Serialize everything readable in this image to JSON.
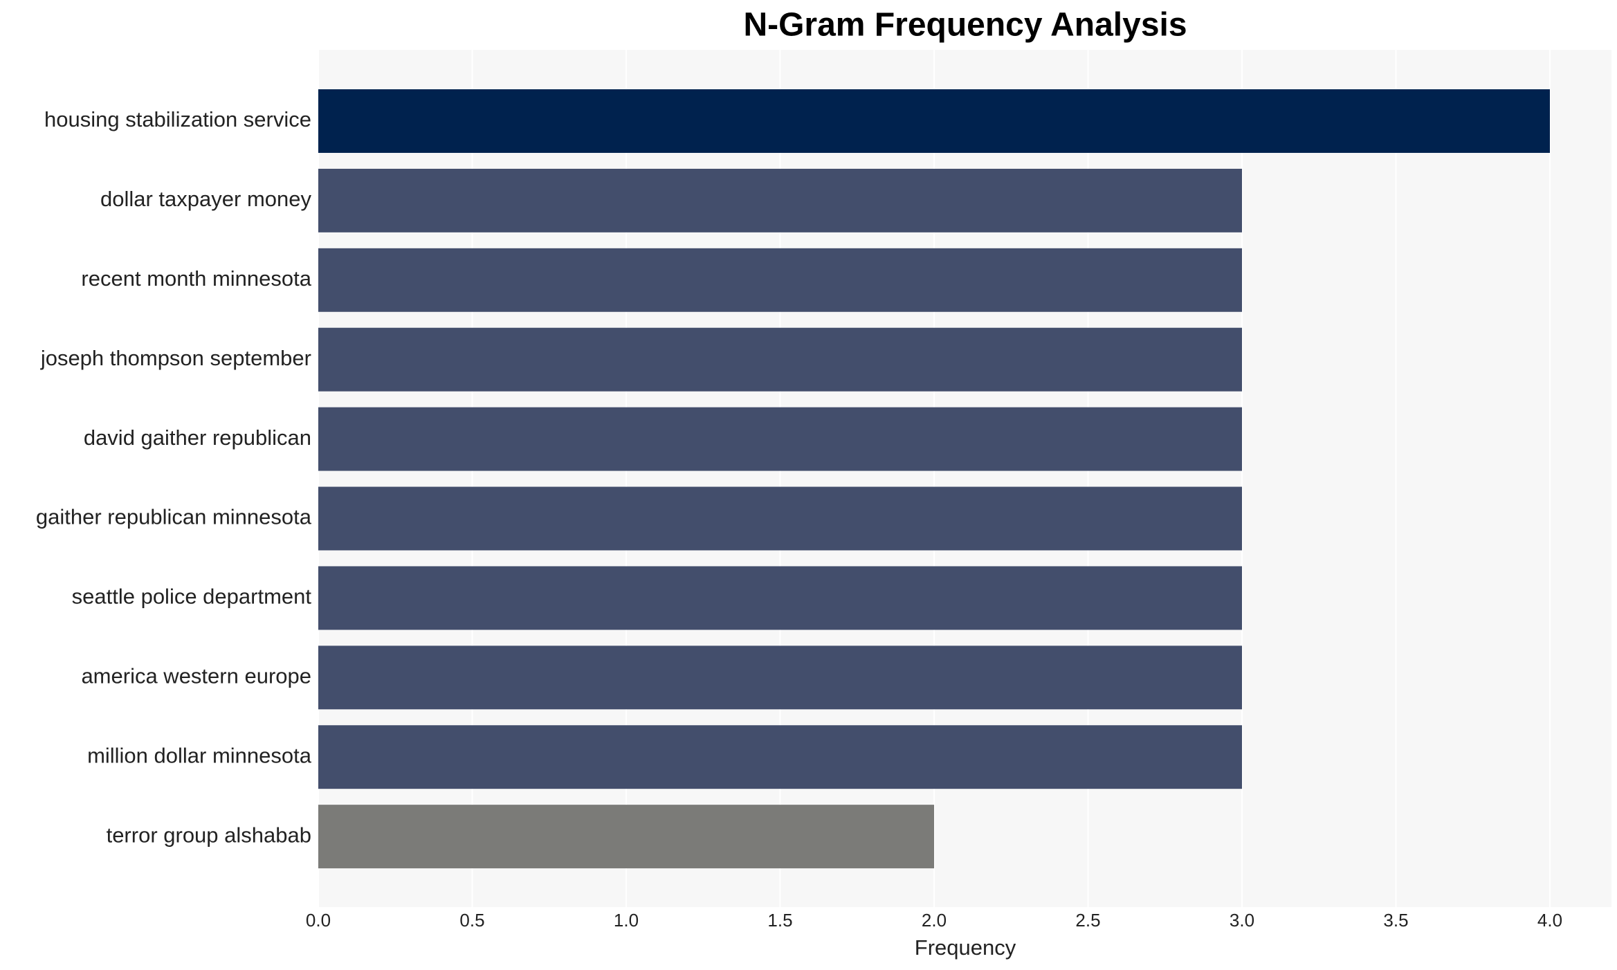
{
  "chart_data": {
    "type": "barh",
    "title": "N-Gram Frequency Analysis",
    "x_label": "Frequency",
    "categories": [
      "housing stabilization service",
      "dollar taxpayer money",
      "recent month minnesota",
      "joseph thompson september",
      "david gaither republican",
      "gaither republican minnesota",
      "seattle police department",
      "america western europe",
      "million dollar minnesota",
      "terror group alshabab"
    ],
    "values": [
      4,
      3,
      3,
      3,
      3,
      3,
      3,
      3,
      3,
      2
    ],
    "colors": [
      "#00224e",
      "#434e6c",
      "#434e6c",
      "#434e6c",
      "#434e6c",
      "#434e6c",
      "#434e6c",
      "#434e6c",
      "#434e6c",
      "#7b7b78"
    ],
    "xlim": [
      0,
      4.2
    ],
    "xticks": [
      {
        "value": 0,
        "label": "0.0"
      },
      0.5,
      {
        "value": 1,
        "label": "1.0"
      },
      1.5,
      {
        "value": 2,
        "label": "2.0"
      },
      2.5,
      {
        "value": 3,
        "label": "3.0"
      },
      3.5,
      {
        "value": 4,
        "label": "4.0"
      }
    ],
    "grid": true
  }
}
